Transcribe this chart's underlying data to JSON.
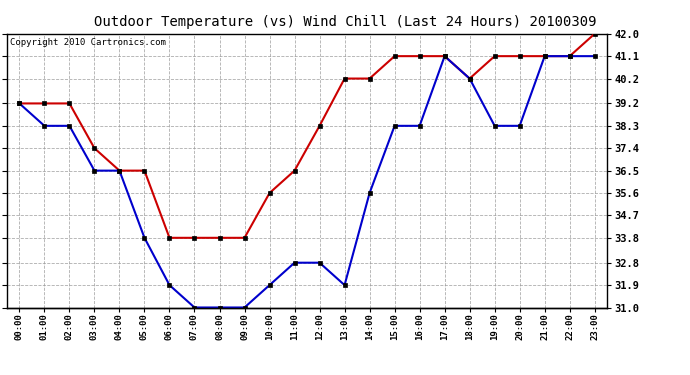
{
  "title": "Outdoor Temperature (vs) Wind Chill (Last 24 Hours) 20100309",
  "copyright": "Copyright 2010 Cartronics.com",
  "x_labels": [
    "00:00",
    "01:00",
    "02:00",
    "03:00",
    "04:00",
    "05:00",
    "06:00",
    "07:00",
    "08:00",
    "09:00",
    "10:00",
    "11:00",
    "12:00",
    "13:00",
    "14:00",
    "15:00",
    "16:00",
    "17:00",
    "18:00",
    "19:00",
    "20:00",
    "21:00",
    "22:00",
    "23:00"
  ],
  "temp_red": [
    39.2,
    39.2,
    39.2,
    37.4,
    36.5,
    36.5,
    33.8,
    33.8,
    33.8,
    33.8,
    35.6,
    36.5,
    38.3,
    40.2,
    40.2,
    41.1,
    41.1,
    41.1,
    40.2,
    41.1,
    41.1,
    41.1,
    41.1,
    42.0
  ],
  "wind_blue": [
    39.2,
    38.3,
    38.3,
    36.5,
    36.5,
    33.8,
    31.9,
    31.0,
    31.0,
    31.0,
    31.9,
    32.8,
    32.8,
    31.9,
    35.6,
    38.3,
    38.3,
    41.1,
    40.2,
    38.3,
    38.3,
    41.1,
    41.1,
    41.1
  ],
  "ylim_min": 31.0,
  "ylim_max": 42.0,
  "yticks": [
    31.0,
    31.9,
    32.8,
    33.8,
    34.7,
    35.6,
    36.5,
    37.4,
    38.3,
    39.2,
    40.2,
    41.1,
    42.0
  ],
  "red_color": "#cc0000",
  "blue_color": "#0000cc",
  "bg_color": "#ffffff",
  "grid_color": "#999999",
  "title_fontsize": 10,
  "copyright_fontsize": 6.5
}
